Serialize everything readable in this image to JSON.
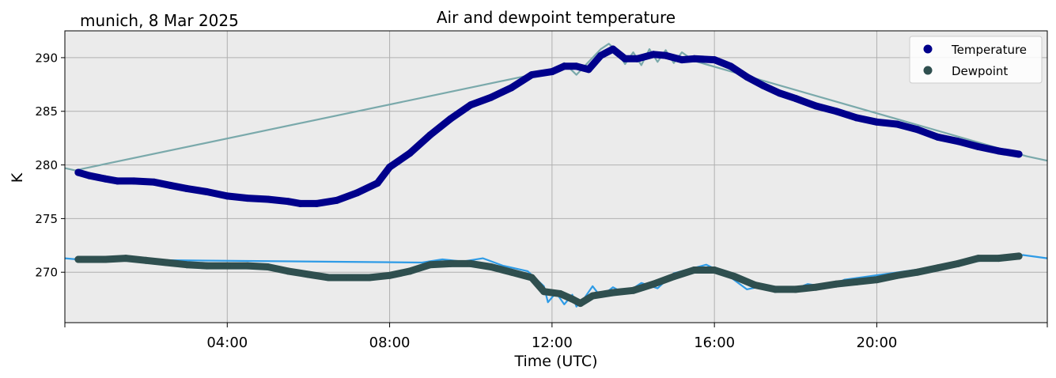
{
  "chart_data": {
    "type": "line",
    "title": "Air and dewpoint temperature",
    "subtitle": "munich, 8 Mar 2025",
    "xlabel": "Time (UTC)",
    "ylabel": "K",
    "x_unit": "hours (UTC)",
    "xlim": [
      0,
      24.2
    ],
    "ylim": [
      265.3,
      292.5
    ],
    "x_ticks": [
      0,
      4,
      8,
      12,
      16,
      20,
      24.2
    ],
    "x_tick_labels": [
      "04:00",
      "08:00",
      "12:00",
      "16:00",
      "20:00"
    ],
    "x_tick_label_positions": [
      4,
      8,
      12,
      16,
      20
    ],
    "y_ticks": [
      270,
      275,
      280,
      285,
      290
    ],
    "y_tick_labels": [
      "270",
      "275",
      "280",
      "285",
      "290"
    ],
    "grid": true,
    "legend": {
      "placement": "top-right",
      "entries": [
        "Temperature",
        "Dewpoint"
      ]
    },
    "colors": {
      "background": "#ebebeb",
      "grid": "#b0b0b0",
      "temperature_marker": "#00008b",
      "temperature_raw": "#7aa9ab",
      "dewpoint_marker": "#2f4f4f",
      "dewpoint_raw": "#2e9be6"
    },
    "series": [
      {
        "name": "Temperature",
        "style": "marker",
        "x": [
          0.33,
          0.6,
          1.0,
          1.3,
          1.7,
          2.2,
          2.6,
          3.0,
          3.5,
          4.0,
          4.5,
          5.0,
          5.5,
          5.8,
          6.2,
          6.7,
          7.2,
          7.7,
          8.0,
          8.5,
          9.0,
          9.5,
          10.0,
          10.5,
          11.0,
          11.5,
          12.0,
          12.3,
          12.6,
          12.9,
          13.2,
          13.5,
          13.8,
          14.1,
          14.5,
          14.8,
          15.2,
          15.5,
          16.0,
          16.4,
          16.8,
          17.2,
          17.6,
          18.0,
          18.5,
          19.0,
          19.5,
          20.0,
          20.5,
          21.0,
          21.5,
          22.0,
          22.5,
          23.0,
          23.5
        ],
        "y": [
          279.3,
          279.0,
          278.7,
          278.5,
          278.5,
          278.4,
          278.1,
          277.8,
          277.5,
          277.1,
          276.9,
          276.8,
          276.6,
          276.4,
          276.4,
          276.7,
          277.4,
          278.3,
          279.8,
          281.1,
          282.8,
          284.3,
          285.6,
          286.3,
          287.2,
          288.4,
          288.7,
          289.2,
          289.2,
          288.9,
          290.2,
          290.8,
          289.9,
          289.9,
          290.3,
          290.2,
          289.8,
          289.9,
          289.8,
          289.2,
          288.2,
          287.4,
          286.7,
          286.2,
          285.5,
          285.0,
          284.4,
          284.0,
          283.8,
          283.3,
          282.6,
          282.2,
          281.7,
          281.3,
          281.0
        ]
      },
      {
        "name": "Dewpoint",
        "style": "marker",
        "x": [
          0.33,
          1.0,
          1.5,
          2.0,
          2.5,
          3.0,
          3.5,
          4.0,
          4.5,
          5.0,
          5.5,
          6.0,
          6.5,
          7.0,
          7.5,
          8.0,
          8.5,
          9.0,
          9.5,
          10.0,
          10.5,
          11.0,
          11.5,
          11.8,
          12.2,
          12.5,
          12.7,
          13.0,
          13.5,
          14.0,
          14.5,
          15.0,
          15.5,
          16.0,
          16.5,
          17.0,
          17.5,
          18.0,
          18.5,
          19.0,
          19.5,
          20.0,
          20.5,
          21.0,
          21.5,
          22.0,
          22.5,
          23.0,
          23.5
        ],
        "y": [
          271.2,
          271.2,
          271.3,
          271.1,
          270.9,
          270.7,
          270.6,
          270.6,
          270.6,
          270.5,
          270.1,
          269.8,
          269.5,
          269.5,
          269.5,
          269.7,
          270.1,
          270.7,
          270.8,
          270.8,
          270.5,
          270.0,
          269.5,
          268.2,
          268.0,
          267.5,
          267.1,
          267.8,
          268.1,
          268.3,
          268.9,
          269.6,
          270.2,
          270.2,
          269.6,
          268.8,
          268.4,
          268.4,
          268.6,
          268.9,
          269.1,
          269.3,
          269.7,
          270.0,
          270.4,
          270.8,
          271.3,
          271.3,
          271.5
        ]
      },
      {
        "name": "",
        "style": "raw-line",
        "color_key": "temperature_raw",
        "x": [
          0.0,
          0.25,
          12.0,
          12.3,
          12.6,
          12.9,
          13.2,
          13.4,
          13.6,
          13.8,
          14.0,
          14.2,
          14.4,
          14.6,
          14.8,
          15.0,
          15.2,
          15.5,
          23.7,
          24.2
        ],
        "y": [
          279.7,
          279.5,
          288.8,
          289.5,
          288.4,
          289.6,
          290.8,
          291.3,
          290.6,
          289.4,
          290.5,
          289.3,
          290.8,
          289.6,
          290.7,
          289.5,
          290.5,
          289.7,
          280.8,
          280.4
        ]
      },
      {
        "name": "",
        "style": "raw-line",
        "color_key": "dewpoint_raw",
        "x": [
          0.0,
          0.3,
          8.8,
          9.3,
          9.8,
          10.3,
          10.8,
          11.4,
          11.8,
          11.9,
          12.1,
          12.3,
          12.5,
          12.6,
          12.8,
          13.0,
          13.2,
          13.5,
          13.8,
          14.2,
          14.6,
          15.0,
          15.4,
          15.8,
          16.3,
          16.8,
          17.3,
          17.8,
          18.3,
          18.8,
          19.2,
          23.6,
          24.2
        ],
        "y": [
          271.3,
          271.2,
          270.9,
          271.2,
          271.0,
          271.3,
          270.6,
          270.1,
          268.7,
          267.2,
          268.1,
          267.0,
          267.9,
          266.8,
          267.6,
          268.7,
          267.7,
          268.6,
          268.0,
          269.0,
          268.5,
          269.9,
          270.3,
          270.7,
          269.8,
          268.4,
          268.8,
          268.2,
          268.9,
          268.6,
          269.3,
          271.6,
          271.3
        ]
      }
    ]
  }
}
